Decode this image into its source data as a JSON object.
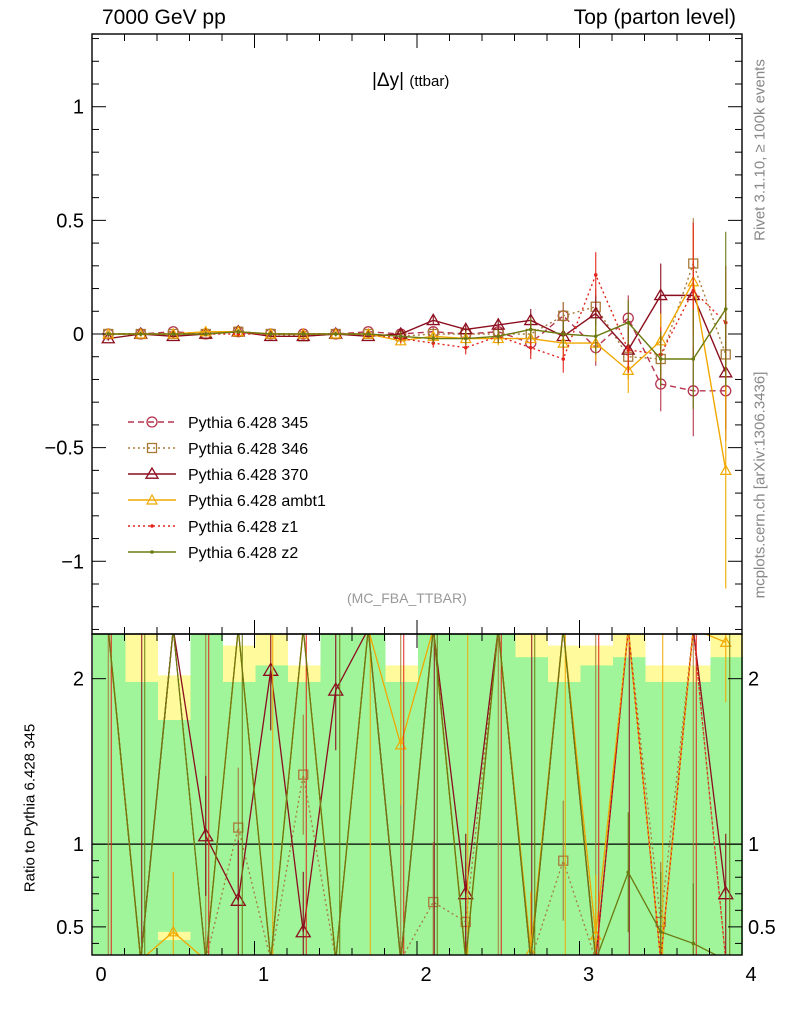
{
  "header": {
    "left": "7000 GeV pp",
    "right": "Top (parton level)"
  },
  "side_text": {
    "rivet": "Rivet 3.1.10, ≥ 100k events",
    "mcplots": "mcplots.cern.ch [arXiv:1306.3436]"
  },
  "chart_data": [
    {
      "type": "line",
      "panel": "main",
      "title_prefix": "|Δy|",
      "title_suffix": "(ttbar)",
      "analysis_tag": "(MC_FBA_TTBAR)",
      "xlim": [
        0,
        4
      ],
      "ylim": [
        -1.32,
        1.32
      ],
      "y_ticks": [
        -1,
        -0.5,
        0,
        0.5,
        1
      ],
      "y_tick_labels": [
        "−1",
        "−0.5",
        "0",
        "0.5",
        "1"
      ],
      "x": [
        0.1,
        0.3,
        0.5,
        0.7,
        0.9,
        1.1,
        1.3,
        1.5,
        1.7,
        1.9,
        2.1,
        2.3,
        2.5,
        2.7,
        2.9,
        3.1,
        3.3,
        3.5,
        3.7,
        3.9
      ],
      "series": [
        {
          "name": "Pythia 6.428 345",
          "color": "#b5334d",
          "dash": "6,4",
          "marker": "circle",
          "values": [
            0.0,
            0.0,
            0.01,
            0.0,
            0.01,
            0.0,
            0.0,
            0.0,
            0.01,
            0.0,
            0.01,
            0.0,
            0.01,
            -0.04,
            0.08,
            -0.06,
            0.07,
            -0.22,
            -0.25,
            -0.25
          ],
          "err": [
            0.01,
            0.01,
            0.01,
            0.01,
            0.01,
            0.01,
            0.01,
            0.01,
            0.01,
            0.02,
            0.02,
            0.03,
            0.03,
            0.05,
            0.06,
            0.08,
            0.1,
            0.12,
            0.2,
            0.22
          ]
        },
        {
          "name": "Pythia 6.428 346",
          "color": "#a87b3a",
          "dash": "2,3",
          "marker": "square",
          "values": [
            0.0,
            0.0,
            0.0,
            0.0,
            0.01,
            0.0,
            -0.01,
            0.0,
            0.0,
            -0.01,
            0.0,
            0.0,
            0.0,
            0.0,
            0.08,
            0.12,
            -0.1,
            -0.11,
            0.31,
            -0.09
          ],
          "err": [
            0.01,
            0.01,
            0.01,
            0.01,
            0.01,
            0.01,
            0.01,
            0.01,
            0.01,
            0.02,
            0.02,
            0.03,
            0.03,
            0.05,
            0.06,
            0.08,
            0.1,
            0.12,
            0.2,
            0.22
          ]
        },
        {
          "name": "Pythia 6.428 370",
          "color": "#8b0e1e",
          "dash": "",
          "marker": "triangle",
          "values": [
            -0.02,
            0.0,
            -0.01,
            0.0,
            0.01,
            -0.01,
            -0.01,
            0.0,
            -0.01,
            0.0,
            0.06,
            0.02,
            0.04,
            0.06,
            -0.01,
            0.09,
            -0.07,
            0.17,
            0.17,
            -0.17
          ],
          "err": [
            0.01,
            0.01,
            0.01,
            0.01,
            0.01,
            0.01,
            0.01,
            0.01,
            0.01,
            0.02,
            0.02,
            0.03,
            0.03,
            0.05,
            0.06,
            0.08,
            0.1,
            0.14,
            0.15,
            0.25
          ]
        },
        {
          "name": "Pythia 6.428 ambt1",
          "color": "#f0a800",
          "dash": "",
          "marker": "triangle-small",
          "values": [
            0.0,
            0.0,
            0.0,
            0.01,
            0.01,
            0.0,
            0.0,
            0.0,
            0.0,
            -0.03,
            -0.01,
            -0.02,
            -0.02,
            -0.02,
            -0.04,
            -0.04,
            -0.16,
            -0.03,
            0.23,
            -0.6
          ],
          "err": [
            0.01,
            0.01,
            0.01,
            0.01,
            0.01,
            0.01,
            0.01,
            0.01,
            0.01,
            0.02,
            0.02,
            0.03,
            0.03,
            0.05,
            0.06,
            0.08,
            0.1,
            0.12,
            0.24,
            0.52
          ]
        },
        {
          "name": "Pythia 6.428 z1",
          "color": "#e3241b",
          "dash": "2,3",
          "marker": "dot",
          "values": [
            0.0,
            0.0,
            0.0,
            0.0,
            0.0,
            0.0,
            0.0,
            0.0,
            0.0,
            -0.02,
            -0.04,
            -0.06,
            -0.01,
            -0.06,
            -0.11,
            0.26,
            -0.07,
            -0.09,
            0.19,
            0.05
          ],
          "err": [
            0.01,
            0.01,
            0.01,
            0.01,
            0.01,
            0.01,
            0.01,
            0.01,
            0.01,
            0.02,
            0.02,
            0.03,
            0.03,
            0.05,
            0.06,
            0.1,
            0.1,
            0.12,
            0.3,
            0.25
          ]
        },
        {
          "name": "Pythia 6.428 z2",
          "color": "#6b7a10",
          "dash": "",
          "marker": "dot",
          "values": [
            0.0,
            0.0,
            0.0,
            0.0,
            0.01,
            0.0,
            0.0,
            0.0,
            0.0,
            -0.01,
            -0.02,
            -0.02,
            -0.01,
            0.02,
            0.0,
            -0.01,
            0.05,
            -0.11,
            -0.11,
            0.11
          ],
          "err": [
            0.01,
            0.01,
            0.01,
            0.01,
            0.01,
            0.01,
            0.01,
            0.01,
            0.01,
            0.02,
            0.02,
            0.03,
            0.03,
            0.05,
            0.06,
            0.08,
            0.1,
            0.12,
            0.22,
            0.34
          ]
        }
      ]
    },
    {
      "type": "line",
      "panel": "ratio",
      "ylabel": "Ratio to Pythia 6.428 345",
      "xlim": [
        0,
        4
      ],
      "ylim": [
        0.33,
        2.27
      ],
      "x_ticks": [
        0,
        1,
        2,
        3,
        4
      ],
      "x_tick_labels": [
        "0",
        "1",
        "2",
        "3",
        "4"
      ],
      "y_ticks": [
        0.5,
        1,
        2
      ],
      "y_tick_labels": [
        "0.5",
        "1",
        "2"
      ],
      "band_colors": {
        "inner": "#a0f59b",
        "outer": "#fffa9b"
      },
      "yellow_band_tops": [
        2.27,
        2.27,
        2.02,
        2.27,
        2.2,
        2.27,
        2.08,
        2.27,
        2.27,
        2.08,
        2.27,
        2.27,
        2.27,
        2.27,
        2.2,
        2.2,
        2.27,
        2.08,
        2.08,
        2.27
      ],
      "green_band_tops": [
        2.27,
        1.98,
        1.75,
        2.27,
        1.98,
        2.08,
        1.98,
        2.27,
        2.27,
        1.98,
        2.27,
        2.27,
        2.27,
        2.13,
        1.98,
        2.08,
        2.13,
        1.98,
        1.98,
        2.13
      ],
      "series": [
        {
          "name": "Pythia 6.428 346",
          "values": [
            null,
            null,
            null,
            null,
            1.1,
            null,
            1.42,
            null,
            null,
            null,
            0.65,
            0.53,
            null,
            null,
            0.9,
            null,
            null,
            0.53,
            null,
            null
          ]
        },
        {
          "name": "Pythia 6.428 370",
          "values": [
            null,
            null,
            null,
            1.05,
            0.66,
            2.05,
            0.47,
            1.93,
            null,
            null,
            null,
            0.7,
            null,
            null,
            null,
            null,
            null,
            null,
            null,
            0.7
          ]
        },
        {
          "name": "Pythia 6.428 ambt1",
          "values": [
            null,
            null,
            0.47,
            null,
            null,
            null,
            null,
            null,
            null,
            1.6,
            null,
            null,
            null,
            0.35,
            null,
            0.45,
            null,
            null,
            null,
            2.22
          ]
        },
        {
          "name": "Pythia 6.428 z1",
          "values": [
            null,
            null,
            null,
            null,
            null,
            null,
            null,
            null,
            null,
            null,
            null,
            null,
            null,
            null,
            null,
            null,
            null,
            null,
            null,
            null
          ]
        },
        {
          "name": "Pythia 6.428 z2",
          "values": [
            null,
            null,
            null,
            null,
            null,
            null,
            null,
            null,
            null,
            null,
            null,
            null,
            null,
            null,
            null,
            null,
            0.83,
            0.47,
            0.4,
            null
          ]
        }
      ]
    }
  ]
}
